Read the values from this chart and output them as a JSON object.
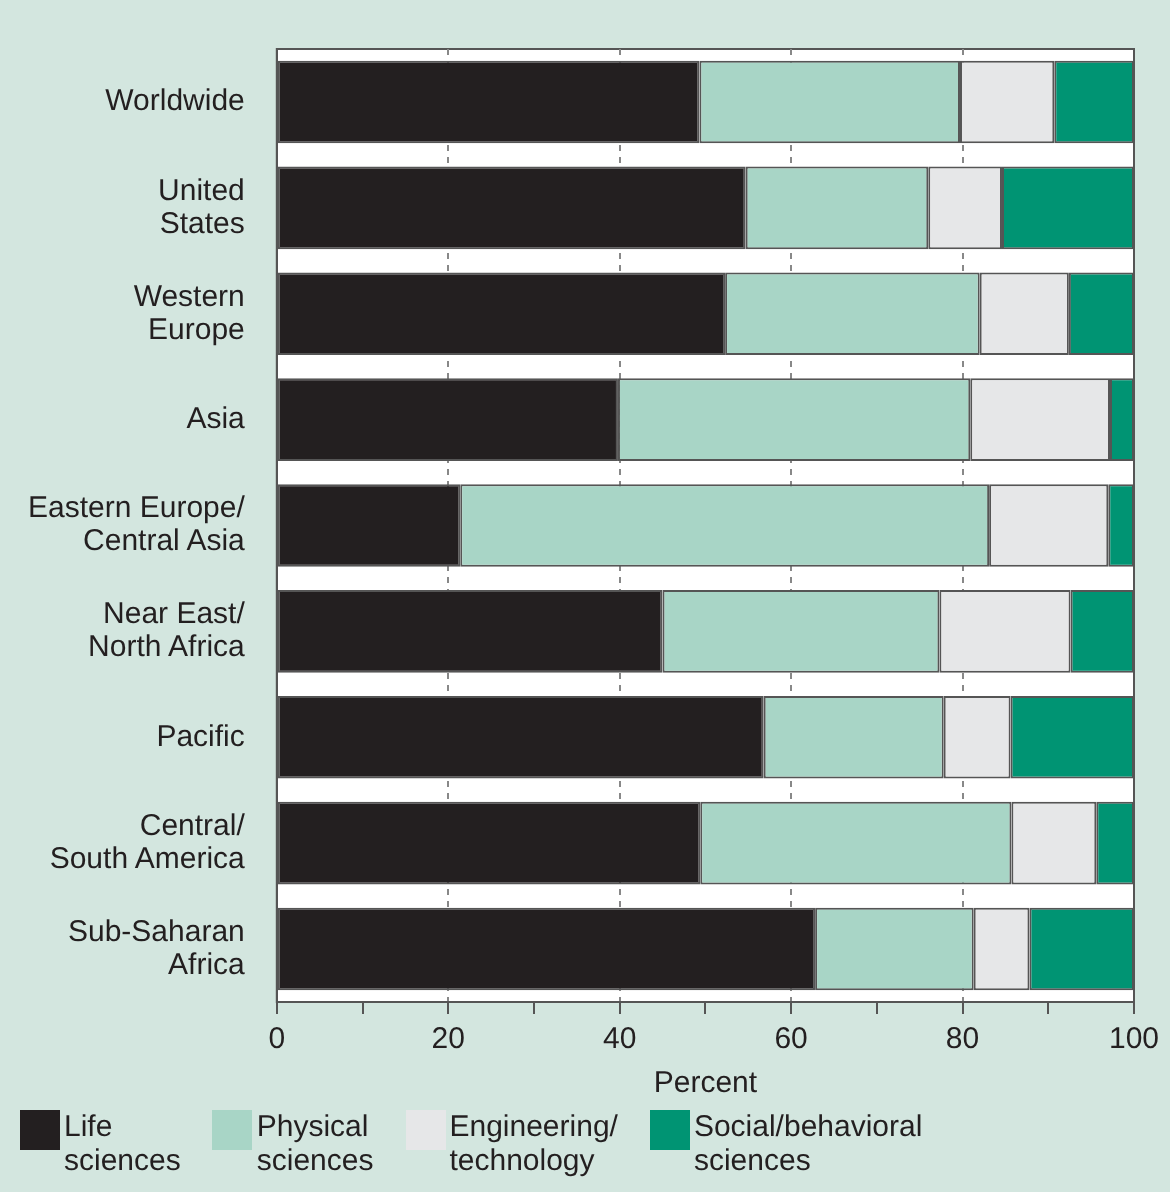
{
  "chart_data": {
    "type": "bar",
    "orientation": "horizontal",
    "stacked": true,
    "xlabel": "Percent",
    "categories": [
      "Worldwide",
      "United\nStates",
      "Western\nEurope",
      "Asia",
      "Eastern Europe/\nCentral Asia",
      "Near East/\nNorth Africa",
      "Pacific",
      "Central/\nSouth America",
      "Sub-Saharan\nAfrica"
    ],
    "series": [
      {
        "name": "Life\nsciences",
        "color": "#231f20",
        "values": [
          49.3,
          54.7,
          52.3,
          39.8,
          21.4,
          45.0,
          56.8,
          49.4,
          62.8
        ]
      },
      {
        "name": "Physical\nsciences",
        "color": "#a8d5c6",
        "values": [
          30.4,
          21.3,
          29.7,
          41.1,
          61.7,
          32.3,
          21.0,
          36.3,
          18.5
        ]
      },
      {
        "name": "Engineering/\ntechnology",
        "color": "#e6e7e8",
        "values": [
          11.0,
          8.6,
          10.4,
          16.3,
          13.9,
          15.3,
          7.8,
          9.9,
          6.5
        ]
      },
      {
        "name": "Social/behavioral\nsciences",
        "color": "#009473",
        "values": [
          9.3,
          15.4,
          7.6,
          2.8,
          3.0,
          7.4,
          14.4,
          4.4,
          12.2
        ]
      }
    ],
    "xlim": [
      0,
      100
    ],
    "xticks": [
      0,
      {
        "value": 10,
        "label": null
      },
      20,
      {
        "value": 30,
        "label": null
      },
      40,
      {
        "value": 50,
        "label": null
      },
      60,
      {
        "value": 70,
        "label": null
      },
      80,
      {
        "value": 90,
        "label": null
      },
      100
    ],
    "grid": "x",
    "legend": "bottom"
  }
}
